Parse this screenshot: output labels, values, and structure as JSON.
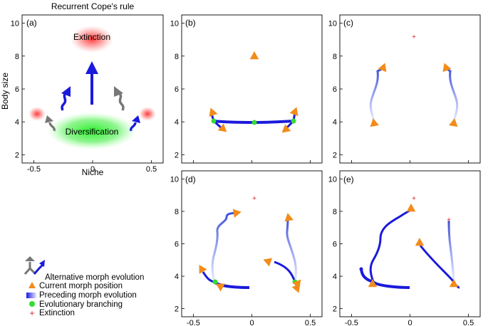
{
  "title": "Recurrent Cope's rule",
  "axes": {
    "xlabel": "Niche",
    "ylabel": "Body size",
    "xlim": [
      -0.6,
      0.6
    ],
    "ylim": [
      1.5,
      10.5
    ],
    "xticks": [
      "-0.5",
      "0",
      "0.5"
    ],
    "yticks": [
      "2",
      "4",
      "6",
      "8",
      "10"
    ]
  },
  "panels": [
    {
      "id": "a",
      "label": "(a)"
    },
    {
      "id": "b",
      "label": "(b)"
    },
    {
      "id": "c",
      "label": "(c)"
    },
    {
      "id": "d",
      "label": "(d)"
    },
    {
      "id": "e",
      "label": "(e)"
    }
  ],
  "schematic": {
    "extinction_label": "Extinction",
    "diversification_label": "Diversification"
  },
  "legend": [
    {
      "key": "alternative",
      "label": "Alternative morph evolution"
    },
    {
      "key": "current",
      "label": "Current morph position"
    },
    {
      "key": "preceding",
      "label": "Preceding morph evolution"
    },
    {
      "key": "branching",
      "label": "Evolutionary branching"
    },
    {
      "key": "extinction",
      "label": "Extinction"
    }
  ],
  "colors": {
    "evolution": "#1a1adb",
    "alternative": "#777777",
    "current": "#f28c1a",
    "branching": "#33dd33",
    "extinction": "#dd2222",
    "diversification": "#33dd33"
  }
}
